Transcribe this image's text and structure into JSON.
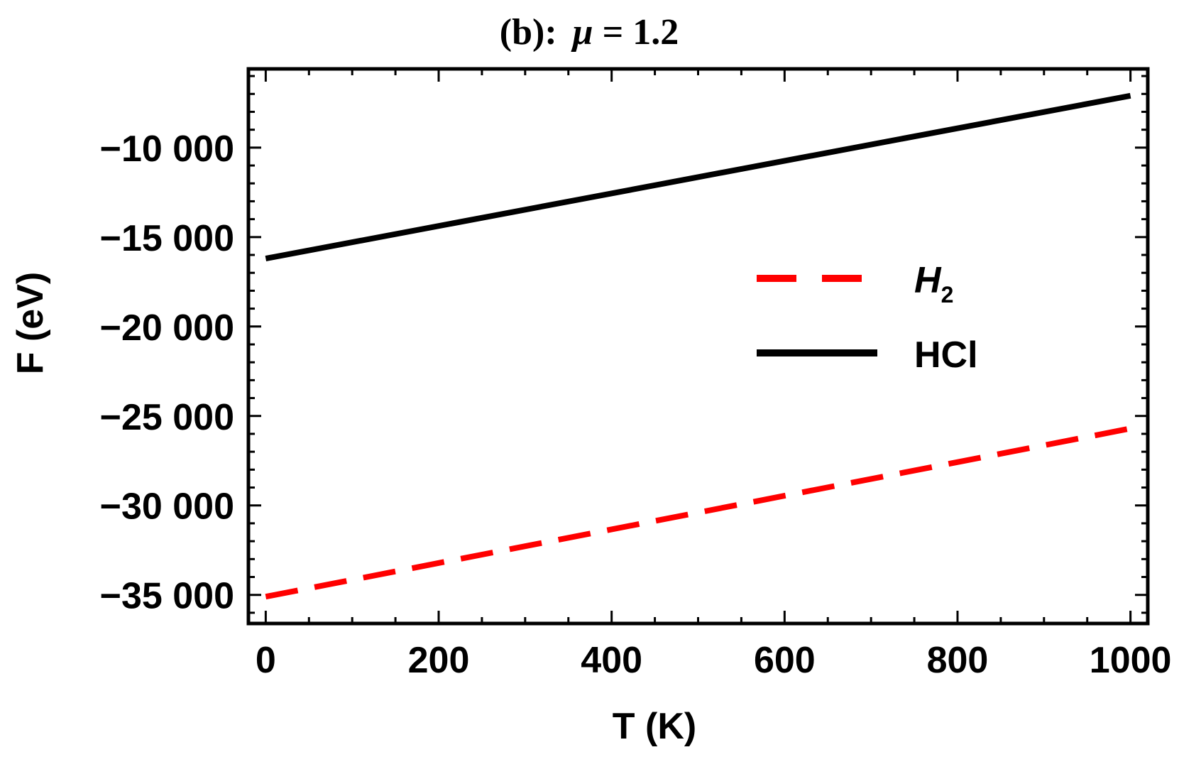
{
  "chart_data": {
    "type": "line",
    "title_prefix": "(b):",
    "title_symbol": "μ",
    "title_suffix": " = 1.2",
    "xlabel": "T (K)",
    "ylabel": "F (eV)",
    "xlim": [
      -20,
      1020
    ],
    "ylim": [
      -36600,
      -5600
    ],
    "x_ticks": [
      0,
      200,
      400,
      600,
      800,
      1000
    ],
    "x_tick_labels": [
      "0",
      "200",
      "400",
      "600",
      "800",
      "1000"
    ],
    "y_ticks": [
      -35000,
      -30000,
      -25000,
      -20000,
      -15000,
      -10000
    ],
    "y_tick_labels": [
      "−35 000",
      "−30 000",
      "−25 000",
      "−20 000",
      "−15 000",
      "−10 000"
    ],
    "grid": false,
    "legend_position": "right-middle",
    "series": [
      {
        "name_main": "H",
        "name_sub": "2",
        "color": "#ff0000",
        "dash": "dashed",
        "x": [
          0,
          1000
        ],
        "values": [
          -35100,
          -25700
        ]
      },
      {
        "name": "HCl",
        "color": "#000000",
        "dash": "solid",
        "x": [
          0,
          1000
        ],
        "values": [
          -16200,
          -7100
        ]
      }
    ]
  }
}
